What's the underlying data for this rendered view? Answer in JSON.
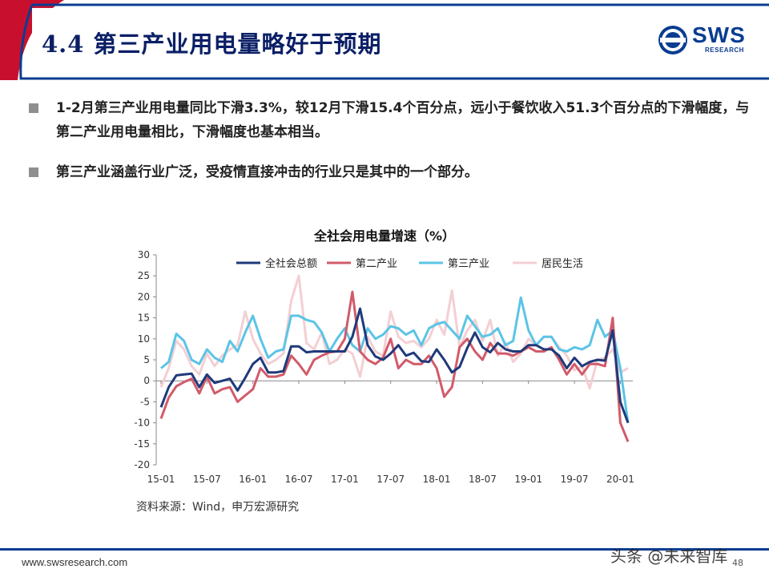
{
  "slide": {
    "title": "4.4 第三产业用电量略好于预期",
    "logo_text": "SWS",
    "logo_sub": "RESEARCH",
    "bullets": [
      "1-2月第三产业用电量同比下滑3.3%，较12月下滑15.4个百分点，远小于餐饮收入51.3个百分点的下滑幅度，与第二产业用电量相比，下滑幅度也基本相当。",
      "第三产业涵盖行业广泛，受疫情直接冲击的行业只是其中的一个部分。"
    ],
    "source": "资料来源：Wind，申万宏源研究",
    "footer_url": "www.swsresearch.com",
    "page_number": "48",
    "watermark": "头条 @未来智库",
    "colors": {
      "title": "#0a1f66",
      "accent": "#0a3d91",
      "bar": "#c8102e"
    }
  },
  "chart_data": {
    "type": "line",
    "title": "全社会用电量增速（%）",
    "xlabel": "",
    "ylabel": "",
    "ylim": [
      -20,
      30
    ],
    "yticks": [
      "30",
      "25",
      "20",
      "15",
      "10",
      "5",
      "0",
      "-5",
      "-10",
      "-15",
      "-20"
    ],
    "xticks": [
      "15-01",
      "15-07",
      "16-01",
      "16-07",
      "17-01",
      "17-07",
      "18-01",
      "18-07",
      "19-01",
      "19-07",
      "20-01"
    ],
    "legend_position": "top",
    "grid": false,
    "x_start": "2015-01",
    "x_end": "2020-02",
    "series": [
      {
        "name": "全社会总额",
        "color": "#1f3a7a",
        "values": [
          -6.3,
          -1.5,
          1.3,
          1.5,
          1.7,
          -1.5,
          1.5,
          -0.5,
          0.0,
          0.5,
          -2.3,
          0.7,
          4.0,
          5.5,
          2.0,
          2.0,
          2.3,
          8.2,
          8.2,
          6.8,
          7.0,
          7.0,
          7.0,
          7.0,
          7.0,
          10.5,
          17.2,
          8.5,
          5.8,
          5.0,
          6.5,
          8.5,
          6.0,
          6.7,
          4.7,
          4.5,
          7.5,
          5.0,
          2.0,
          3.3,
          7.8,
          11.5,
          8.0,
          6.8,
          9.0,
          7.5,
          7.0,
          7.0,
          8.5,
          8.5,
          7.5,
          7.5,
          6.0,
          3.0,
          5.5,
          3.5,
          4.5,
          5.0,
          4.8,
          12.0,
          -5.0,
          -10.0
        ]
      },
      {
        "name": "第二产业",
        "color": "#d15b6a",
        "values": [
          -9.0,
          -4.0,
          -1.3,
          -0.3,
          0.5,
          -3.0,
          1.0,
          -3.0,
          -2.0,
          -1.5,
          -5.0,
          -3.5,
          -2.0,
          3.0,
          1.0,
          1.0,
          1.5,
          6.0,
          4.0,
          1.5,
          5.0,
          6.0,
          6.8,
          7.0,
          10.0,
          21.2,
          7.0,
          5.0,
          4.0,
          5.5,
          10.0,
          3.0,
          5.0,
          4.0,
          4.0,
          6.0,
          3.0,
          -3.8,
          -1.5,
          8.0,
          10.0,
          7.0,
          5.0,
          9.0,
          6.5,
          6.5,
          6.0,
          7.0,
          8.0,
          7.0,
          7.0,
          8.0,
          5.0,
          1.5,
          4.0,
          1.5,
          4.0,
          4.0,
          3.5,
          15.0,
          -10.0,
          -14.5
        ]
      },
      {
        "name": "第三产业",
        "color": "#5bc4e6",
        "values": [
          3.0,
          4.5,
          11.2,
          9.5,
          5.0,
          4.0,
          7.5,
          5.5,
          4.5,
          9.5,
          7.0,
          11.5,
          15.5,
          10.0,
          5.5,
          7.0,
          7.5,
          15.5,
          15.5,
          14.5,
          14.0,
          11.5,
          7.0,
          10.0,
          12.5,
          8.5,
          7.0,
          12.5,
          10.0,
          11.0,
          13.0,
          12.5,
          11.0,
          12.0,
          8.5,
          12.5,
          13.5,
          14.0,
          12.0,
          10.0,
          15.5,
          13.0,
          10.5,
          11.0,
          12.5,
          8.5,
          9.5,
          19.8,
          12.0,
          8.5,
          10.5,
          10.5,
          7.5,
          7.0,
          8.0,
          7.5,
          8.5,
          14.5,
          10.5,
          12.0,
          3.0,
          -10.0
        ]
      },
      {
        "name": "居民生活",
        "color": "#f3cfd3",
        "values": [
          -1.5,
          3.0,
          9.5,
          7.5,
          3.5,
          1.5,
          6.5,
          3.5,
          6.0,
          7.5,
          8.5,
          16.5,
          10.0,
          6.5,
          4.0,
          5.0,
          6.5,
          19.0,
          25.0,
          9.0,
          7.5,
          11.5,
          4.0,
          5.0,
          7.5,
          6.5,
          1.0,
          10.5,
          7.0,
          6.0,
          16.5,
          10.5,
          9.0,
          9.5,
          8.0,
          10.0,
          14.5,
          11.0,
          21.5,
          8.0,
          12.0,
          14.5,
          9.5,
          14.5,
          6.0,
          9.0,
          4.5,
          6.5,
          10.0,
          8.5,
          10.5,
          10.5,
          8.0,
          6.0,
          2.5,
          3.5,
          -1.8,
          5.0,
          5.5,
          7.5,
          2.0,
          3.0
        ]
      }
    ]
  }
}
